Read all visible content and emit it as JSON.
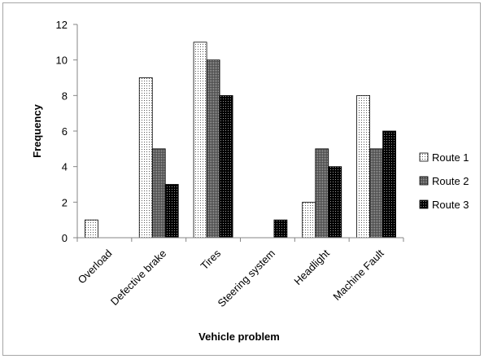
{
  "chart_data": {
    "type": "bar",
    "title": "",
    "xlabel": "Vehicle problem",
    "ylabel": "Frequency",
    "ylim": [
      0,
      12
    ],
    "yticks": [
      0,
      2,
      4,
      6,
      8,
      10,
      12
    ],
    "grid": false,
    "legend_position": "right",
    "categories": [
      "Overload",
      "Defective brake",
      "Tires",
      "Steering system",
      "Headlight",
      "Machine Fault"
    ],
    "series": [
      {
        "name": "Route 1",
        "values": [
          1,
          9,
          11,
          0,
          2,
          8
        ],
        "pattern": "light-dots"
      },
      {
        "name": "Route 2",
        "values": [
          0,
          5,
          10,
          0,
          5,
          5
        ],
        "pattern": "dark-dots"
      },
      {
        "name": "Route 3",
        "values": [
          0,
          3,
          8,
          1,
          4,
          6
        ],
        "pattern": "black-dots"
      }
    ]
  }
}
